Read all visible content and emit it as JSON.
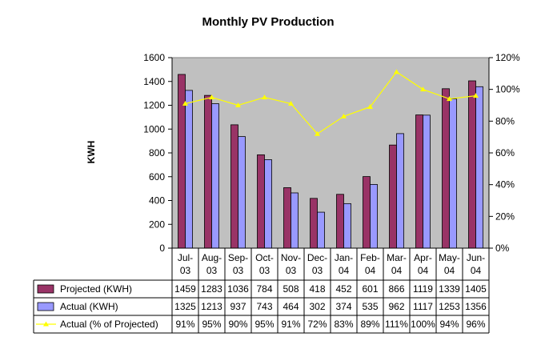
{
  "chart_data": {
    "type": "bar",
    "title": "Monthly PV Production",
    "ylabel": "KWH",
    "ylim": [
      0,
      1600
    ],
    "yticks": [
      "0",
      "200",
      "400",
      "600",
      "800",
      "1000",
      "1200",
      "1400",
      "1600"
    ],
    "y2lim": [
      0,
      120
    ],
    "y2ticks": [
      "0%",
      "20%",
      "40%",
      "60%",
      "80%",
      "100%",
      "120%"
    ],
    "grid": false,
    "categories": [
      [
        "Jul-",
        "03"
      ],
      [
        "Aug-",
        "03"
      ],
      [
        "Sep-",
        "03"
      ],
      [
        "Oct-",
        "03"
      ],
      [
        "Nov-",
        "03"
      ],
      [
        "Dec-",
        "03"
      ],
      [
        "Jan-",
        "04"
      ],
      [
        "Feb-",
        "04"
      ],
      [
        "Mar-",
        "04"
      ],
      [
        "Apr-",
        "04"
      ],
      [
        "May-",
        "04"
      ],
      [
        "Jun-",
        "04"
      ]
    ],
    "series": [
      {
        "name": "Projected (KWH)",
        "type": "bar",
        "axis": "left",
        "color": "#993366",
        "values": [
          1459,
          1283,
          1036,
          784,
          508,
          418,
          452,
          601,
          866,
          1119,
          1339,
          1405
        ],
        "labels": [
          "1459",
          "1283",
          "1036",
          "784",
          "508",
          "418",
          "452",
          "601",
          "866",
          "1119",
          "1339",
          "1405"
        ]
      },
      {
        "name": "Actual (KWH)",
        "type": "bar",
        "axis": "left",
        "color": "#9999ff",
        "values": [
          1325,
          1213,
          937,
          743,
          464,
          302,
          374,
          535,
          962,
          1117,
          1253,
          1356
        ],
        "labels": [
          "1325",
          "1213",
          "937",
          "743",
          "464",
          "302",
          "374",
          "535",
          "962",
          "1117",
          "1253",
          "1356"
        ]
      },
      {
        "name": "Actual (% of Projected)",
        "type": "line",
        "axis": "right",
        "color": "#ffff00",
        "values": [
          91,
          95,
          90,
          95,
          91,
          72,
          83,
          89,
          111,
          100,
          94,
          96
        ],
        "labels": [
          "91%",
          "95%",
          "90%",
          "95%",
          "91%",
          "72%",
          "83%",
          "89%",
          "111%",
          "100%",
          "94%",
          "96%"
        ]
      }
    ],
    "legend": "data-table",
    "plot_background": "#c0c0c0"
  }
}
